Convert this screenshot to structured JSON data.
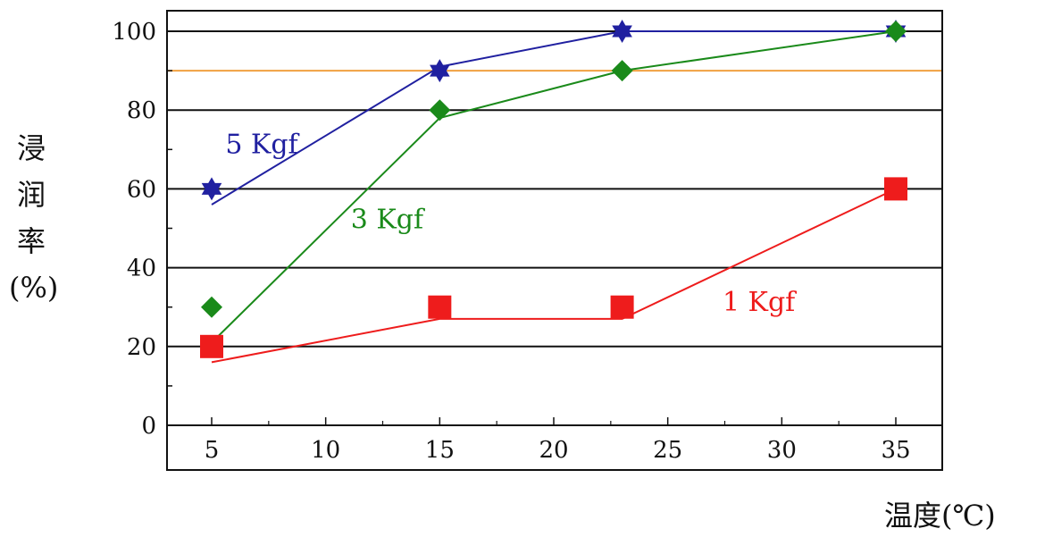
{
  "chart_data": {
    "type": "line",
    "title": "",
    "ylabel_chars": [
      "浸",
      "润",
      "率"
    ],
    "ylabel_unit": "(%)",
    "xlabel": "温度(℃)",
    "xlim": [
      0,
      40
    ],
    "ylim": [
      0,
      100
    ],
    "x_ticks": [
      5,
      10,
      15,
      20,
      25,
      30,
      35
    ],
    "y_ticks": [
      0,
      20,
      40,
      60,
      80,
      100
    ],
    "grid": "horizontal",
    "reference_line": {
      "y": 90,
      "color": "#f0a040"
    },
    "series": [
      {
        "name": "5 Kgf",
        "color": "#2020a0",
        "marker": "star",
        "points": [
          {
            "x": 5,
            "y": 60
          },
          {
            "x": 15,
            "y": 90
          },
          {
            "x": 23,
            "y": 100
          },
          {
            "x": 35,
            "y": 100
          }
        ],
        "fit_line": [
          {
            "x": 5,
            "y": 56
          },
          {
            "x": 15,
            "y": 91
          },
          {
            "x": 23,
            "y": 100
          },
          {
            "x": 35,
            "y": 100
          }
        ],
        "label_pos": {
          "x": 5.6,
          "y": 69
        }
      },
      {
        "name": "3 Kgf",
        "color": "#1a8a1a",
        "marker": "diamond",
        "points": [
          {
            "x": 5,
            "y": 30
          },
          {
            "x": 15,
            "y": 80
          },
          {
            "x": 23,
            "y": 90
          },
          {
            "x": 35,
            "y": 100
          }
        ],
        "fit_line": [
          {
            "x": 5,
            "y": 21
          },
          {
            "x": 15,
            "y": 78
          },
          {
            "x": 23,
            "y": 90
          },
          {
            "x": 35,
            "y": 100
          }
        ],
        "label_pos": {
          "x": 11.1,
          "y": 50
        }
      },
      {
        "name": "1 Kgf",
        "color": "#ee1c1c",
        "marker": "square",
        "points": [
          {
            "x": 5,
            "y": 20
          },
          {
            "x": 15,
            "y": 30
          },
          {
            "x": 23,
            "y": 30
          },
          {
            "x": 35,
            "y": 60
          }
        ],
        "fit_line": [
          {
            "x": 5,
            "y": 16
          },
          {
            "x": 15,
            "y": 27
          },
          {
            "x": 23,
            "y": 27
          },
          {
            "x": 35,
            "y": 60
          }
        ],
        "label_pos": {
          "x": 27.4,
          "y": 29
        }
      }
    ]
  }
}
